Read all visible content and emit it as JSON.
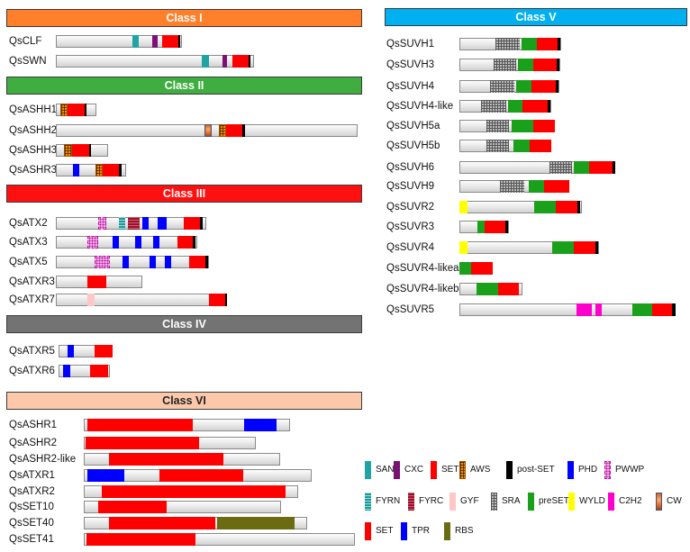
{
  "colors": {
    "SANT": "#1fa3a3",
    "CXC": "#7b1273",
    "SET": "#ff0000",
    "AWS": "pattern-aws",
    "post-SET": "#000000",
    "PHD": "#0000ff",
    "PWWP": "pattern-pwwp",
    "FYRN": "pattern-fyrn",
    "FYRC": "pattern-fyrc",
    "GYF": "#ffc6c6",
    "SRA": "pattern-sra",
    "preSET": "#1aa01a",
    "WYLD": "#ffff00",
    "C2H2": "#ff00cc",
    "CW": "pattern-cw",
    "TPR": "#0000ff",
    "RBS": "#6b6b12"
  },
  "classes": [
    {
      "name": "Class I",
      "header_color": "#ff7f2a",
      "dark_text": false,
      "genes": [
        {
          "name": "QsCLF",
          "length": 140,
          "domains": [
            {
              "type": "SANT",
              "start": 85,
              "end": 92
            },
            {
              "type": "CXC",
              "start": 107,
              "end": 113
            },
            {
              "type": "SET",
              "start": 118,
              "end": 136
            },
            {
              "type": "post-SET",
              "start": 136,
              "end": 138
            }
          ]
        },
        {
          "name": "QsSWN",
          "length": 220,
          "domains": [
            {
              "type": "SANT",
              "start": 162,
              "end": 170
            },
            {
              "type": "CXC",
              "start": 185,
              "end": 190
            },
            {
              "type": "SET",
              "start": 196,
              "end": 214
            },
            {
              "type": "post-SET",
              "start": 214,
              "end": 216
            }
          ]
        }
      ]
    },
    {
      "name": "Class II",
      "header_color": "#3fad3f",
      "dark_text": false,
      "genes": [
        {
          "name": "QsASHH1",
          "length": 45,
          "domains": [
            {
              "type": "AWS",
              "start": 5,
              "end": 13
            },
            {
              "type": "SET",
              "start": 13,
              "end": 32
            },
            {
              "type": "post-SET",
              "start": 32,
              "end": 34
            }
          ]
        },
        {
          "name": "QsASHH2",
          "length": 335,
          "domains": [
            {
              "type": "CW",
              "start": 165,
              "end": 173
            },
            {
              "type": "AWS",
              "start": 181,
              "end": 189
            },
            {
              "type": "SET",
              "start": 189,
              "end": 207
            },
            {
              "type": "post-SET",
              "start": 207,
              "end": 210
            }
          ]
        },
        {
          "name": "QsASHH3",
          "length": 58,
          "domains": [
            {
              "type": "AWS",
              "start": 9,
              "end": 18
            },
            {
              "type": "SET",
              "start": 18,
              "end": 37
            },
            {
              "type": "post-SET",
              "start": 37,
              "end": 39
            }
          ]
        },
        {
          "name": "QsASHR3",
          "length": 78,
          "domains": [
            {
              "type": "PHD",
              "start": 19,
              "end": 26
            },
            {
              "type": "AWS",
              "start": 44,
              "end": 52
            },
            {
              "type": "SET",
              "start": 52,
              "end": 70
            },
            {
              "type": "post-SET",
              "start": 70,
              "end": 73
            }
          ]
        }
      ]
    },
    {
      "name": "Class III",
      "header_color": "#ff1010",
      "dark_text": false,
      "genes": [
        {
          "name": "QsATX2",
          "length": 167,
          "domains": [
            {
              "type": "PWWP",
              "start": 47,
              "end": 56
            },
            {
              "type": "FYRN",
              "start": 70,
              "end": 77
            },
            {
              "type": "FYRC",
              "start": 80,
              "end": 93
            },
            {
              "type": "PHD",
              "start": 96,
              "end": 103
            },
            {
              "type": "PHD",
              "start": 113,
              "end": 123
            },
            {
              "type": "SET",
              "start": 142,
              "end": 160
            },
            {
              "type": "post-SET",
              "start": 160,
              "end": 163
            }
          ]
        },
        {
          "name": "QsATX3",
          "length": 157,
          "domains": [
            {
              "type": "PWWP",
              "start": 35,
              "end": 47
            },
            {
              "type": "PHD",
              "start": 63,
              "end": 70
            },
            {
              "type": "PHD",
              "start": 88,
              "end": 95
            },
            {
              "type": "PHD",
              "start": 108,
              "end": 115
            },
            {
              "type": "SET",
              "start": 135,
              "end": 152
            },
            {
              "type": "post-SET",
              "start": 152,
              "end": 155
            }
          ]
        },
        {
          "name": "QsATX5",
          "length": 170,
          "domains": [
            {
              "type": "PWWP",
              "start": 43,
              "end": 60
            },
            {
              "type": "PHD",
              "start": 74,
              "end": 81
            },
            {
              "type": "PHD",
              "start": 104,
              "end": 111
            },
            {
              "type": "PHD",
              "start": 121,
              "end": 128
            },
            {
              "type": "SET",
              "start": 148,
              "end": 166
            },
            {
              "type": "post-SET",
              "start": 166,
              "end": 169
            }
          ]
        },
        {
          "name": "QsATXR3",
          "length": 96,
          "domains": [
            {
              "type": "SET",
              "start": 35,
              "end": 56
            }
          ]
        },
        {
          "name": "QsATXR7",
          "length": 190,
          "domains": [
            {
              "type": "GYF",
              "start": 35,
              "end": 43
            },
            {
              "type": "SET",
              "start": 170,
              "end": 188
            },
            {
              "type": "post-SET",
              "start": 188,
              "end": 190
            }
          ]
        }
      ]
    },
    {
      "name": "Class IV",
      "header_color": "#737373",
      "dark_text": false,
      "genes": [
        {
          "name": "QsATXR5",
          "length": 60,
          "domains": [
            {
              "type": "PHD",
              "start": 10,
              "end": 17
            },
            {
              "type": "SET",
              "start": 40,
              "end": 60
            }
          ]
        },
        {
          "name": "QsATXR6",
          "length": 57,
          "domains": [
            {
              "type": "PHD",
              "start": 5,
              "end": 13
            },
            {
              "type": "SET",
              "start": 35,
              "end": 55
            }
          ]
        }
      ]
    },
    {
      "name": "Class VI",
      "header_color": "#fcc8aa",
      "dark_text": true,
      "genes": [
        {
          "name": "QsASHR1",
          "length": 229,
          "domains": [
            {
              "type": "SET",
              "start": 4,
              "end": 121
            },
            {
              "type": "TPR",
              "start": 178,
              "end": 214
            }
          ]
        },
        {
          "name": "QsASHR2",
          "length": 191,
          "domains": [
            {
              "type": "SET",
              "start": 2,
              "end": 128
            }
          ]
        },
        {
          "name": "QsASHR2-like",
          "length": 218,
          "domains": [
            {
              "type": "SET",
              "start": 28,
              "end": 155
            }
          ]
        },
        {
          "name": "QsATXR1",
          "length": 253,
          "domains": [
            {
              "type": "TPR",
              "start": 4,
              "end": 45
            },
            {
              "type": "SET",
              "start": 84,
              "end": 177
            }
          ]
        },
        {
          "name": "QsATXR2",
          "length": 238,
          "domains": [
            {
              "type": "SET",
              "start": 20,
              "end": 224
            }
          ]
        },
        {
          "name": "QsSET10",
          "length": 219,
          "domains": [
            {
              "type": "SET",
              "start": 16,
              "end": 92
            }
          ]
        },
        {
          "name": "QsSET40",
          "length": 248,
          "domains": [
            {
              "type": "SET",
              "start": 28,
              "end": 146
            },
            {
              "type": "RBS",
              "start": 148,
              "end": 234
            }
          ]
        },
        {
          "name": "QsSET41",
          "length": 301,
          "domains": [
            {
              "type": "SET",
              "start": 3,
              "end": 124
            }
          ]
        }
      ]
    },
    {
      "name": "Class V",
      "header_color": "#00b0f0",
      "dark_text": false,
      "genes": [
        {
          "name": "QsSUVH1",
          "length": 113,
          "domains": [
            {
              "type": "SRA",
              "start": 40,
              "end": 67
            },
            {
              "type": "preSET",
              "start": 69,
              "end": 86
            },
            {
              "type": "SET",
              "start": 86,
              "end": 109
            },
            {
              "type": "post-SET",
              "start": 109,
              "end": 112
            }
          ]
        },
        {
          "name": "QsSUVH3",
          "length": 112,
          "domains": [
            {
              "type": "SRA",
              "start": 38,
              "end": 63
            },
            {
              "type": "preSET",
              "start": 65,
              "end": 82
            },
            {
              "type": "SET",
              "start": 82,
              "end": 108
            },
            {
              "type": "post-SET",
              "start": 108,
              "end": 111
            }
          ]
        },
        {
          "name": "QsSUVH4",
          "length": 111,
          "domains": [
            {
              "type": "SRA",
              "start": 34,
              "end": 61
            },
            {
              "type": "preSET",
              "start": 63,
              "end": 80
            },
            {
              "type": "SET",
              "start": 80,
              "end": 107
            },
            {
              "type": "post-SET",
              "start": 107,
              "end": 110
            }
          ]
        },
        {
          "name": "QsSUVH4-like",
          "length": 102,
          "domains": [
            {
              "type": "SRA",
              "start": 24,
              "end": 52
            },
            {
              "type": "preSET",
              "start": 54,
              "end": 70
            },
            {
              "type": "SET",
              "start": 70,
              "end": 98
            },
            {
              "type": "post-SET",
              "start": 98,
              "end": 101
            }
          ]
        },
        {
          "name": "QsSUVH5a",
          "length": 106,
          "domains": [
            {
              "type": "SRA",
              "start": 30,
              "end": 55
            },
            {
              "type": "preSET",
              "start": 58,
              "end": 82
            },
            {
              "type": "SET",
              "start": 82,
              "end": 106
            }
          ]
        },
        {
          "name": "QsSUVH5b",
          "length": 102,
          "domains": [
            {
              "type": "SRA",
              "start": 30,
              "end": 55
            },
            {
              "type": "preSET",
              "start": 60,
              "end": 78
            },
            {
              "type": "SET",
              "start": 78,
              "end": 102
            }
          ]
        },
        {
          "name": "QsSUVH6",
          "length": 173,
          "domains": [
            {
              "type": "SRA",
              "start": 100,
              "end": 125
            },
            {
              "type": "preSET",
              "start": 127,
              "end": 144
            },
            {
              "type": "SET",
              "start": 144,
              "end": 170
            },
            {
              "type": "post-SET",
              "start": 170,
              "end": 173
            }
          ]
        },
        {
          "name": "QsSUVH9",
          "length": 122,
          "domains": [
            {
              "type": "SRA",
              "start": 45,
              "end": 72
            },
            {
              "type": "preSET",
              "start": 77,
              "end": 94
            },
            {
              "type": "SET",
              "start": 94,
              "end": 122
            }
          ]
        },
        {
          "name": "QsSUVR2",
          "length": 136,
          "domains": [
            {
              "type": "WYLD",
              "start": 0,
              "end": 9
            },
            {
              "type": "preSET",
              "start": 83,
              "end": 107
            },
            {
              "type": "SET",
              "start": 107,
              "end": 131
            },
            {
              "type": "post-SET",
              "start": 131,
              "end": 134
            }
          ]
        },
        {
          "name": "QsSUVR3",
          "length": 55,
          "domains": [
            {
              "type": "preSET",
              "start": 20,
              "end": 28
            },
            {
              "type": "SET",
              "start": 28,
              "end": 51
            },
            {
              "type": "post-SET",
              "start": 51,
              "end": 54
            }
          ]
        },
        {
          "name": "QsSUVR4",
          "length": 155,
          "domains": [
            {
              "type": "WYLD",
              "start": 0,
              "end": 9
            },
            {
              "type": "preSET",
              "start": 103,
              "end": 127
            },
            {
              "type": "SET",
              "start": 127,
              "end": 151
            },
            {
              "type": "post-SET",
              "start": 151,
              "end": 154
            }
          ]
        },
        {
          "name": "QsSUVR4-likea",
          "length": 37,
          "domains": [
            {
              "type": "preSET",
              "start": 0,
              "end": 13
            },
            {
              "type": "SET",
              "start": 13,
              "end": 37
            }
          ]
        },
        {
          "name": "QsSUVR4-likeb",
          "length": 70,
          "domains": [
            {
              "type": "preSET",
              "start": 19,
              "end": 43
            },
            {
              "type": "SET",
              "start": 43,
              "end": 66
            }
          ]
        },
        {
          "name": "QsSUVR5",
          "length": 240,
          "domains": [
            {
              "type": "C2H2",
              "start": 130,
              "end": 147
            },
            {
              "type": "C2H2",
              "start": 151,
              "end": 158
            },
            {
              "type": "preSET",
              "start": 192,
              "end": 214
            },
            {
              "type": "SET",
              "start": 214,
              "end": 236
            },
            {
              "type": "post-SET",
              "start": 236,
              "end": 240
            }
          ]
        }
      ]
    }
  ],
  "legend": [
    [
      {
        "type": "SANT",
        "label": "SANT"
      },
      {
        "type": "CXC",
        "label": "CXC"
      },
      {
        "type": "SET",
        "label": "SET"
      },
      {
        "type": "AWS",
        "label": "AWS"
      },
      {
        "type": "post-SET",
        "label": "post-SET"
      },
      {
        "type": "PHD",
        "label": "PHD"
      },
      {
        "type": "PWWP",
        "label": "PWWP"
      }
    ],
    [
      {
        "type": "FYRN",
        "label": "FYRN"
      },
      {
        "type": "FYRC",
        "label": "FYRC"
      },
      {
        "type": "GYF",
        "label": "GYF"
      },
      {
        "type": "SRA",
        "label": "SRA"
      },
      {
        "type": "preSET",
        "label": "preSET"
      },
      {
        "type": "WYLD",
        "label": "WYLD"
      },
      {
        "type": "C2H2",
        "label": "C2H2"
      },
      {
        "type": "CW",
        "label": "CW"
      }
    ],
    [
      {
        "type": "SET",
        "label": "SET"
      },
      {
        "type": "TPR",
        "label": "TPR"
      },
      {
        "type": "RBS",
        "label": "RBS"
      }
    ]
  ]
}
